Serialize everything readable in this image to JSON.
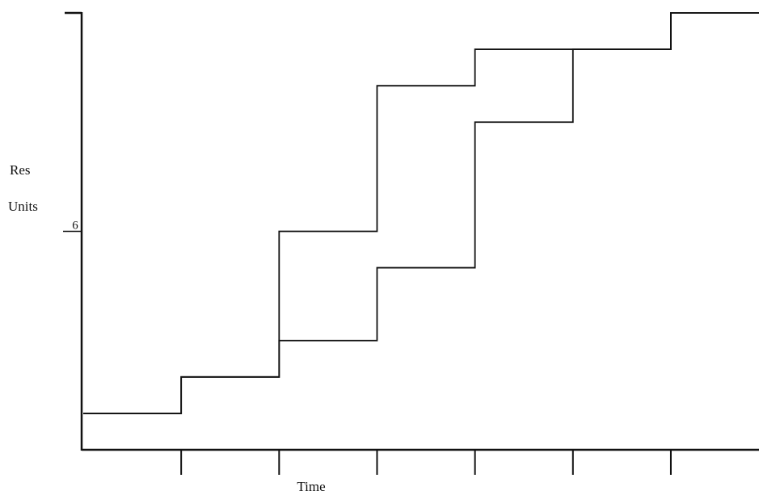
{
  "chart_data": {
    "type": "step",
    "ylabel": [
      "Res",
      "Units"
    ],
    "xlabel": "Time",
    "x": [
      0,
      1,
      2,
      3,
      4,
      5,
      6
    ],
    "xlim": [
      0,
      6.9
    ],
    "xticks": [
      1,
      2,
      3,
      4,
      5,
      6
    ],
    "ylim": [
      0,
      12
    ],
    "yticks": [
      6
    ],
    "series": [
      {
        "color": "#111111",
        "values": [
          1,
          2,
          6,
          10,
          11,
          11,
          12
        ]
      },
      {
        "color": "#111111",
        "values": [
          1,
          2,
          3,
          5,
          9,
          11,
          12
        ]
      }
    ]
  }
}
